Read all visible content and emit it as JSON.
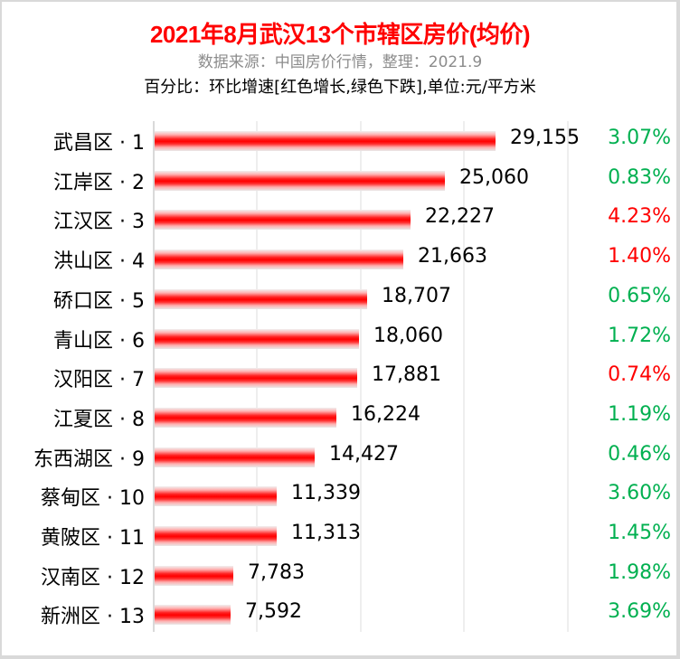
{
  "header": {
    "title": "2021年8月武汉13个市辖区房价(均价)",
    "subtitle": "数据来源：中国房价行情，整理：2021.9",
    "note": "百分比：环比增速[红色增长,绿色下跌],单位:元/平方米"
  },
  "colors": {
    "up": "#ff0000",
    "down": "#00b050",
    "bar": "#ff0000"
  },
  "rows": [
    {
      "label": "武昌区 · 1",
      "value": 29155,
      "value_text": "29,155",
      "pct": "3.07%",
      "dir": "down"
    },
    {
      "label": "江岸区 · 2",
      "value": 25060,
      "value_text": "25,060",
      "pct": "0.83%",
      "dir": "down"
    },
    {
      "label": "江汉区 · 3",
      "value": 22227,
      "value_text": "22,227",
      "pct": "4.23%",
      "dir": "up"
    },
    {
      "label": "洪山区 · 4",
      "value": 21663,
      "value_text": "21,663",
      "pct": "1.40%",
      "dir": "up"
    },
    {
      "label": "硚口区 · 5",
      "value": 18707,
      "value_text": "18,707",
      "pct": "0.65%",
      "dir": "down"
    },
    {
      "label": "青山区 · 6",
      "value": 18060,
      "value_text": "18,060",
      "pct": "1.72%",
      "dir": "down"
    },
    {
      "label": "汉阳区 · 7",
      "value": 17881,
      "value_text": "17,881",
      "pct": "0.74%",
      "dir": "up"
    },
    {
      "label": "江夏区 · 8",
      "value": 16224,
      "value_text": "16,224",
      "pct": "1.19%",
      "dir": "down"
    },
    {
      "label": "东西湖区 · 9",
      "value": 14427,
      "value_text": "14,427",
      "pct": "0.46%",
      "dir": "down"
    },
    {
      "label": "蔡甸区 · 10",
      "value": 11339,
      "value_text": "11,339",
      "pct": "3.60%",
      "dir": "down"
    },
    {
      "label": "黄陂区 · 11",
      "value": 11313,
      "value_text": "11,313",
      "pct": "1.45%",
      "dir": "down"
    },
    {
      "label": "汉南区 · 12",
      "value": 7783,
      "value_text": "7,783",
      "pct": "1.98%",
      "dir": "down"
    },
    {
      "label": "新洲区 · 13",
      "value": 7592,
      "value_text": "7,592",
      "pct": "3.69%",
      "dir": "down"
    }
  ],
  "chart_data": {
    "type": "bar",
    "orientation": "horizontal",
    "title": "2021年8月武汉13个市辖区房价(均价)",
    "subtitle": "数据来源：中国房价行情，整理：2021.9",
    "annotation": "百分比：环比增速[红色增长,绿色下跌],单位:元/平方米",
    "xlabel": "",
    "ylabel": "",
    "unit": "元/平方米",
    "categories": [
      "武昌区 · 1",
      "江岸区 · 2",
      "江汉区 · 3",
      "洪山区 · 4",
      "硚口区 · 5",
      "青山区 · 6",
      "汉阳区 · 7",
      "江夏区 · 8",
      "东西湖区 · 9",
      "蔡甸区 · 10",
      "黄陂区 · 11",
      "汉南区 · 12",
      "新洲区 · 13"
    ],
    "series": [
      {
        "name": "均价",
        "values": [
          29155,
          25060,
          22227,
          21663,
          18707,
          18060,
          17881,
          16224,
          14427,
          11339,
          11313,
          7783,
          7592
        ]
      },
      {
        "name": "环比增速(%)",
        "values": [
          3.07,
          0.83,
          4.23,
          1.4,
          0.65,
          1.72,
          0.74,
          1.19,
          0.46,
          3.6,
          1.45,
          1.98,
          3.69
        ],
        "colors": [
          "green",
          "green",
          "red",
          "red",
          "green",
          "green",
          "red",
          "green",
          "green",
          "green",
          "green",
          "green",
          "green"
        ]
      }
    ],
    "grid": true,
    "legend": "none"
  }
}
